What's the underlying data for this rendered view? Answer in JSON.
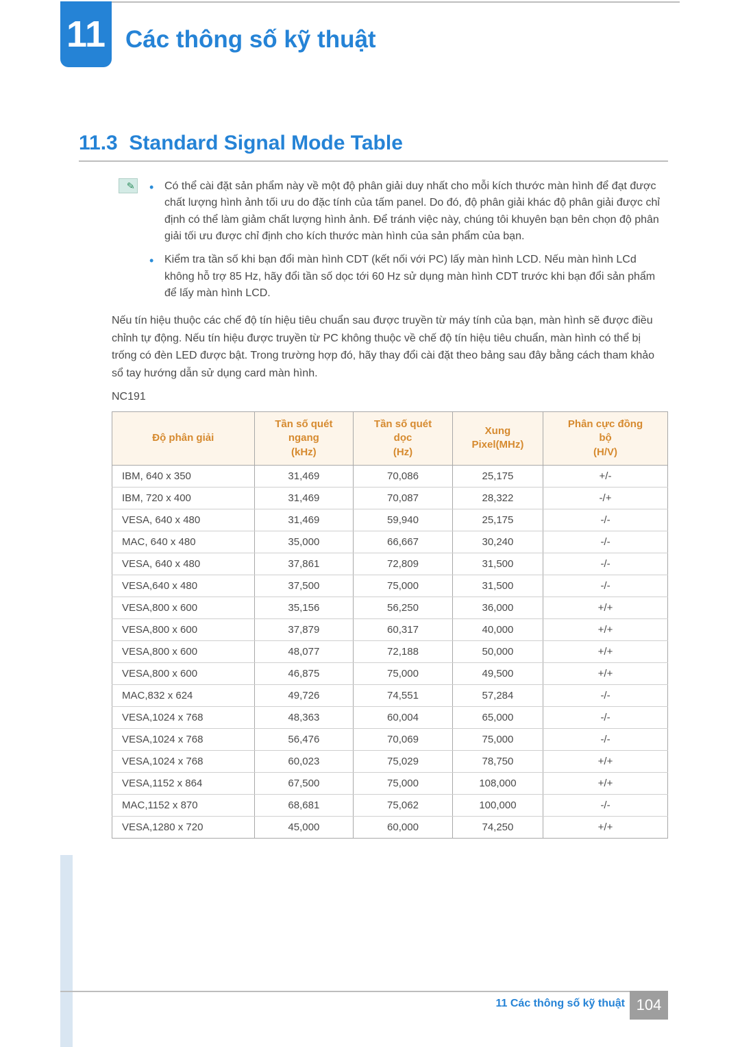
{
  "chapter": {
    "number": "11",
    "title": "Các thông số kỹ thuật",
    "title_color": "#2583d6"
  },
  "section": {
    "number": "11.3",
    "title": "Standard Signal Mode Table",
    "color": "#2583d6"
  },
  "notes": {
    "bullets": [
      "Có thể cài đặt sản phẩm này về một độ phân giải duy nhất cho mỗi kích thước màn hình để đạt được chất lượng hình ảnh tối ưu do đặc tính của tấm panel. Do đó, độ phân giải khác độ phân giải được chỉ định có thể làm giảm chất lượng hình ảnh. Để tránh việc này, chúng tôi khuyên bạn bên chọn độ phân giải tối ưu được chỉ định cho kích thước màn hình của sản phẩm của bạn.",
      "Kiểm tra tần số khi bạn đổi màn hình CDT (kết nối với PC) lấy màn hình LCD. Nếu màn hình LCd không hỗ trợ 85 Hz, hãy đổi tần số dọc tới 60 Hz sử dụng màn hình CDT trước khi bạn đổi sản phẩm để lấy màn hình LCD."
    ],
    "bullet_color": "#2a8cd8",
    "icon_bg": "#d4ebe6",
    "icon_pencil_color": "#2a8a5a"
  },
  "intro_paragraph": "Nếu tín hiệu thuộc các chế độ tín hiệu tiêu chuẩn sau được truyền từ máy tính của bạn, màn hình sẽ được điều chỉnh tự động. Nếu tín hiệu được truyền từ PC không thuộc về chế độ tín hiệu tiêu chuẩn, màn hình có thể bị trống có đèn LED được bật. Trong trường hợp đó, hãy thay đổi cài đặt theo bảng sau đây bằng cách tham khảo sổ tay hướng dẫn sử dụng card màn hình.",
  "model": "NC191",
  "table": {
    "header_bg": "#fdf5ea",
    "header_color": "#d68a2f",
    "border_color": "#a8a8a8",
    "columns": [
      "Độ phân giải",
      "Tần số quét ngang (kHz)",
      "Tần số quét dọc (Hz)",
      "Xung Pixel(MHz)",
      "Phân cực đồng bộ (H/V)"
    ],
    "rows": [
      [
        "IBM, 640 x 350",
        "31,469",
        "70,086",
        "25,175",
        "+/-"
      ],
      [
        "IBM, 720 x 400",
        "31,469",
        "70,087",
        "28,322",
        "-/+"
      ],
      [
        "VESA, 640 x 480",
        "31,469",
        "59,940",
        "25,175",
        "-/-"
      ],
      [
        "MAC, 640 x 480",
        "35,000",
        "66,667",
        "30,240",
        "-/-"
      ],
      [
        "VESA, 640 x 480",
        "37,861",
        "72,809",
        "31,500",
        "-/-"
      ],
      [
        "VESA,640 x 480",
        "37,500",
        "75,000",
        "31,500",
        "-/-"
      ],
      [
        "VESA,800 x 600",
        "35,156",
        "56,250",
        "36,000",
        "+/+"
      ],
      [
        "VESA,800 x 600",
        "37,879",
        "60,317",
        "40,000",
        "+/+"
      ],
      [
        "VESA,800 x 600",
        "48,077",
        "72,188",
        "50,000",
        "+/+"
      ],
      [
        "VESA,800 x 600",
        "46,875",
        "75,000",
        "49,500",
        "+/+"
      ],
      [
        "MAC,832 x 624",
        "49,726",
        "74,551",
        "57,284",
        "-/-"
      ],
      [
        "VESA,1024 x 768",
        "48,363",
        "60,004",
        "65,000",
        "-/-"
      ],
      [
        "VESA,1024 x 768",
        "56,476",
        "70,069",
        "75,000",
        "-/-"
      ],
      [
        "VESA,1024 x 768",
        "60,023",
        "75,029",
        "78,750",
        "+/+"
      ],
      [
        "VESA,1152 x 864",
        "67,500",
        "75,000",
        "108,000",
        "+/+"
      ],
      [
        "MAC,1152 x 870",
        "68,681",
        "75,062",
        "100,000",
        "-/-"
      ],
      [
        "VESA,1280 x 720",
        "45,000",
        "60,000",
        "74,250",
        "+/+"
      ]
    ]
  },
  "footer": {
    "text": "11 Các thông số kỹ thuật",
    "page": "104",
    "text_color": "#2583d6",
    "page_bg": "#9e9e9e"
  }
}
